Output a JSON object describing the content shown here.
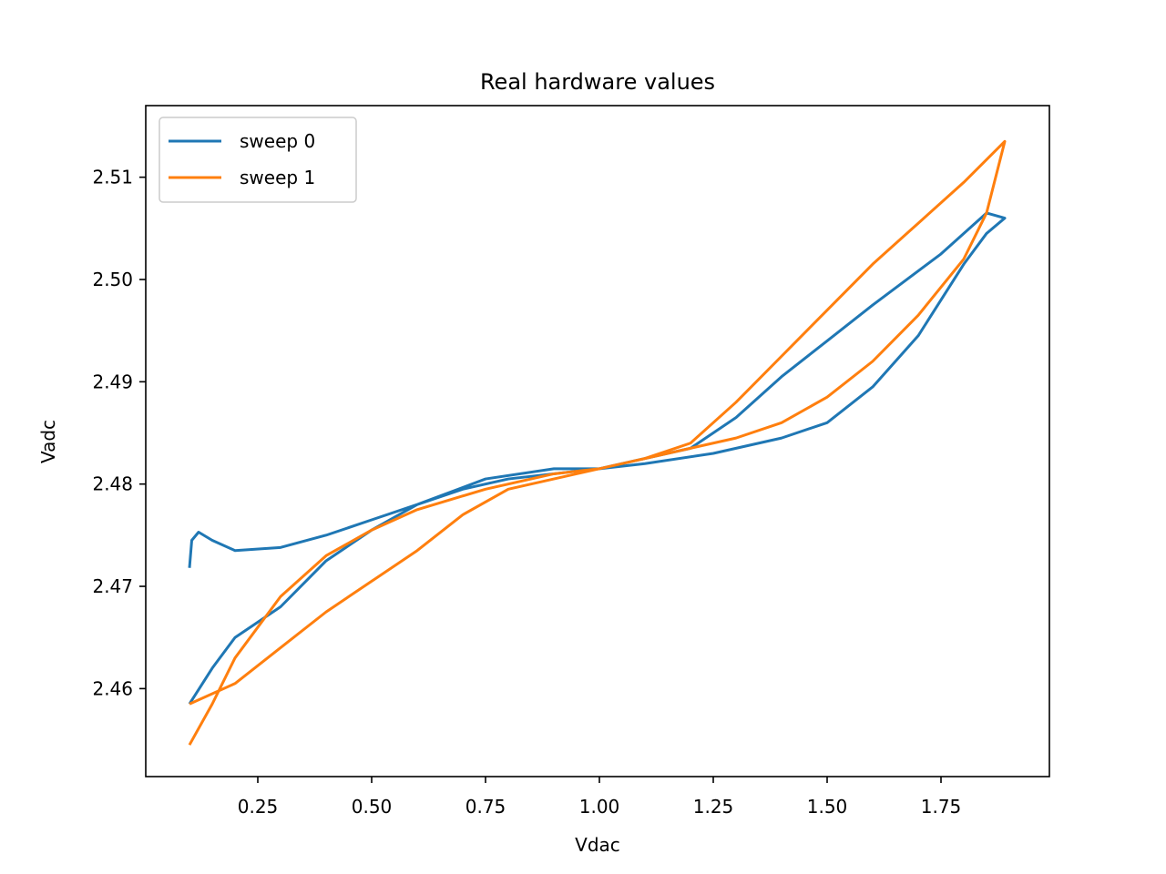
{
  "chart_data": {
    "type": "line",
    "title": "Real hardware values",
    "xlabel": "Vdac",
    "ylabel": "Vadc",
    "xlim": [
      0.004,
      1.988
    ],
    "ylim": [
      2.4514,
      2.517
    ],
    "xticks": [
      0.25,
      {
        "value": 0.5,
        "label": "0.50"
      },
      0.75,
      {
        "value": 1.0,
        "label": "1.00"
      },
      1.25,
      {
        "value": 1.5,
        "label": "1.50"
      },
      1.75
    ],
    "yticks": [
      2.46,
      2.47,
      2.48,
      2.49,
      {
        "value": 2.5,
        "label": "2.50"
      },
      2.51
    ],
    "legend": "upper left",
    "series": [
      {
        "name": "sweep 0",
        "color": "#1f77b4",
        "x": [
          0.1,
          0.105,
          0.12,
          0.15,
          0.2,
          0.3,
          0.4,
          0.5,
          0.6,
          0.75,
          0.9,
          1.0,
          1.1,
          1.25,
          1.4,
          1.5,
          1.6,
          1.7,
          1.8,
          1.85,
          1.89,
          1.85,
          1.75,
          1.6,
          1.5,
          1.4,
          1.3,
          1.2,
          1.0,
          0.8,
          0.7,
          0.6,
          0.5,
          0.4,
          0.3,
          0.2,
          0.15,
          0.1
        ],
        "values": [
          2.4718,
          2.4745,
          2.4753,
          2.4745,
          2.4735,
          2.4738,
          2.475,
          2.4765,
          2.478,
          2.4805,
          2.4815,
          2.4815,
          2.482,
          2.483,
          2.4845,
          2.486,
          2.4895,
          2.4945,
          2.5015,
          2.5045,
          2.506,
          2.5065,
          2.5025,
          2.4975,
          2.494,
          2.4905,
          2.4865,
          2.4835,
          2.4815,
          2.4805,
          2.4795,
          2.478,
          2.4755,
          2.4725,
          2.468,
          2.465,
          2.462,
          2.4585
        ]
      },
      {
        "name": "sweep 1",
        "color": "#ff7f0e",
        "x": [
          0.1,
          0.15,
          0.2,
          0.3,
          0.4,
          0.5,
          0.6,
          0.75,
          0.9,
          1.0,
          1.1,
          1.2,
          1.3,
          1.4,
          1.5,
          1.6,
          1.7,
          1.8,
          1.89,
          1.85,
          1.8,
          1.7,
          1.6,
          1.5,
          1.4,
          1.3,
          1.2,
          1.0,
          0.8,
          0.7,
          0.6,
          0.5,
          0.4,
          0.3,
          0.2,
          0.1
        ],
        "values": [
          2.4545,
          2.4585,
          2.463,
          2.469,
          2.473,
          2.4755,
          2.4775,
          2.4795,
          2.481,
          2.4815,
          2.4825,
          2.484,
          2.488,
          2.4925,
          2.497,
          2.5015,
          2.5055,
          2.5095,
          2.5135,
          2.5065,
          2.502,
          2.4965,
          2.492,
          2.4885,
          2.486,
          2.4845,
          2.4835,
          2.4815,
          2.4795,
          2.477,
          2.4735,
          2.4705,
          2.4675,
          2.464,
          2.4605,
          2.4585
        ]
      }
    ]
  }
}
